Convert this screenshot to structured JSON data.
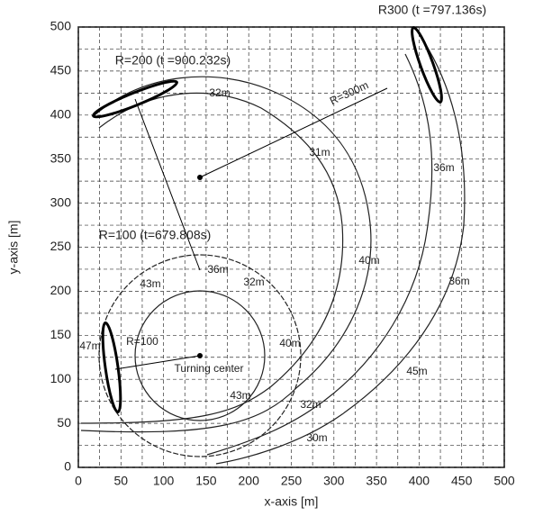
{
  "chart_data": {
    "type": "trajectory",
    "xlabel": "x-axis [m]",
    "ylabel": "y-axis [m]",
    "xlim": [
      0,
      500
    ],
    "ylim": [
      0,
      500
    ],
    "xticks": [
      0,
      50,
      100,
      150,
      200,
      250,
      300,
      350,
      400,
      450,
      500
    ],
    "yticks": [
      0,
      50,
      100,
      150,
      200,
      250,
      300,
      350,
      400,
      450,
      500
    ],
    "grid": true,
    "annotations": [
      "R300 (t =797.136s)",
      "R=200 (t =900.232s)",
      "32m",
      "R=300m",
      "31m",
      "36m",
      "R=100 (t=679.808s)",
      "36m",
      "43m",
      "32m",
      "40m",
      "36m",
      "47m",
      "R=100",
      "40m",
      "Turning center",
      "45m",
      "43m",
      "32m",
      "30m"
    ]
  }
}
